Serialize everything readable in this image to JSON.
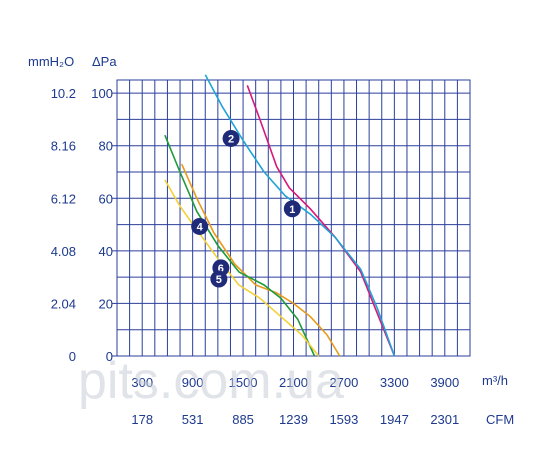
{
  "chart_data": {
    "type": "line",
    "y_units": [
      "mmH₂O",
      "ΔPa"
    ],
    "y_pa_ticks": [
      0,
      20,
      40,
      60,
      80,
      100
    ],
    "y_mmh2o_ticks": [
      "0",
      "2.04",
      "4.08",
      "6.12",
      "8.16",
      "10.2"
    ],
    "ylim": [
      0,
      105
    ],
    "x_m3h_ticks": [
      300,
      900,
      1500,
      2100,
      2700,
      3300,
      3900
    ],
    "x_m3h_label": "m³/h",
    "x_cfm_ticks": [
      "178",
      "531",
      "885",
      "1239",
      "1593",
      "1947",
      "2301"
    ],
    "x_cfm_label": "CFM",
    "xlim": [
      0,
      4200
    ],
    "grid": true,
    "series": [
      {
        "name": "1",
        "color": "#d6197a",
        "x": [
          1550,
          1700,
          1900,
          2050,
          2300,
          2600,
          2900,
          3100,
          3300
        ],
        "y": [
          103,
          90,
          72,
          64,
          56,
          45,
          32,
          16,
          0
        ]
      },
      {
        "name": "2",
        "color": "#21a3d6",
        "x": [
          1050,
          1250,
          1500,
          1750,
          2000,
          2300,
          2600,
          2900,
          3100,
          3300
        ],
        "y": [
          107,
          95,
          82,
          70,
          61,
          54,
          45,
          33,
          18,
          0
        ]
      },
      {
        "name": "4",
        "color": "#e89b1a",
        "x": [
          770,
          950,
          1150,
          1400,
          1650,
          1900,
          2100,
          2300,
          2500,
          2650
        ],
        "y": [
          73,
          60,
          47,
          35,
          27,
          24,
          20,
          15,
          8,
          0
        ]
      },
      {
        "name": "6",
        "color": "#1f9a3a",
        "x": [
          570,
          750,
          950,
          1200,
          1450,
          1750,
          1950,
          2150,
          2350
        ],
        "y": [
          84,
          70,
          55,
          42,
          32,
          27,
          22,
          14,
          0
        ]
      },
      {
        "name": "5",
        "color": "#f2d13a",
        "x": [
          570,
          750,
          950,
          1200,
          1450,
          1700,
          1950,
          2200,
          2400
        ],
        "y": [
          67,
          57,
          48,
          37,
          27,
          22,
          15,
          8,
          0
        ]
      }
    ],
    "curve_markers": [
      "1",
      "2",
      "4",
      "6",
      "5"
    ]
  },
  "watermark": "pits.com.ua"
}
